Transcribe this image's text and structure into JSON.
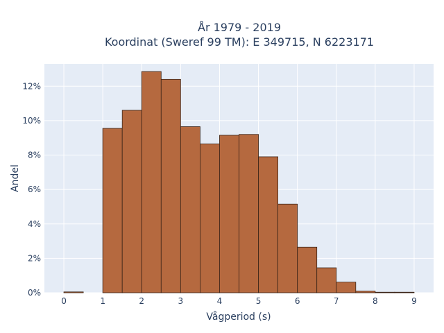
{
  "chart_data": {
    "type": "bar",
    "title_lines": [
      "År 1979 - 2019",
      "Koordinat (Sweref 99 TM): E 349715, N 6223171"
    ],
    "xlabel": "Vågperiod (s)",
    "ylabel": "Andel",
    "x_ticks": [
      "0",
      "1",
      "2",
      "3",
      "4",
      "5",
      "6",
      "7",
      "8",
      "9"
    ],
    "y_ticks": [
      "0%",
      "2%",
      "4%",
      "6%",
      "8%",
      "10%",
      "12%"
    ],
    "xlim": [
      -0.5,
      9.5
    ],
    "ylim": [
      0,
      13.3
    ],
    "bin_width": 0.5,
    "bins": [
      {
        "x0": 0.0,
        "value": 0.05
      },
      {
        "x0": 0.5,
        "value": 0
      },
      {
        "x0": 1.0,
        "value": 9.55
      },
      {
        "x0": 1.5,
        "value": 10.6
      },
      {
        "x0": 2.0,
        "value": 12.85
      },
      {
        "x0": 2.5,
        "value": 12.4
      },
      {
        "x0": 3.0,
        "value": 9.65
      },
      {
        "x0": 3.5,
        "value": 8.65
      },
      {
        "x0": 4.0,
        "value": 9.15
      },
      {
        "x0": 4.5,
        "value": 9.2
      },
      {
        "x0": 5.0,
        "value": 7.9
      },
      {
        "x0": 5.5,
        "value": 5.15
      },
      {
        "x0": 6.0,
        "value": 2.65
      },
      {
        "x0": 6.5,
        "value": 1.45
      },
      {
        "x0": 7.0,
        "value": 0.62
      },
      {
        "x0": 7.5,
        "value": 0.1
      },
      {
        "x0": 8.0,
        "value": 0.03
      },
      {
        "x0": 8.5,
        "value": 0.02
      }
    ],
    "grid": true,
    "colors": {
      "bar_fill": "#b5693f",
      "bar_edge": "#3b2418",
      "plot_bg": "#e5ecf6",
      "grid": "#ffffff",
      "text": "#2a3f5f"
    }
  }
}
